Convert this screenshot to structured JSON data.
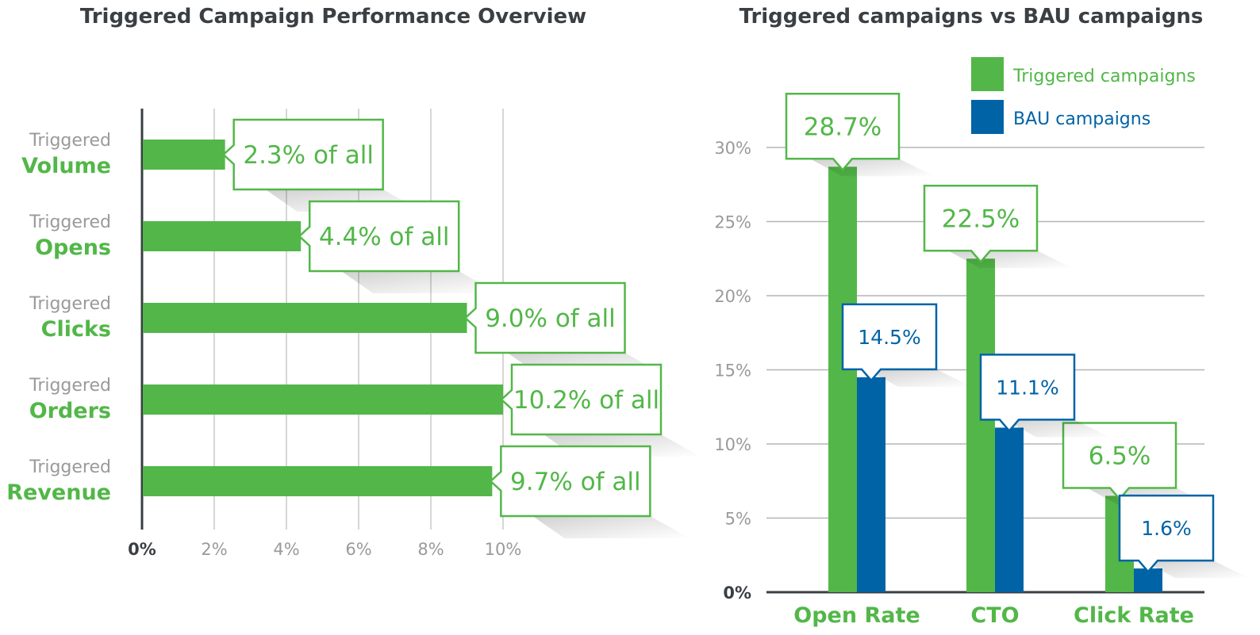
{
  "chart_data": [
    {
      "type": "bar",
      "orientation": "horizontal",
      "title": "Triggered Campaign Performance Overview",
      "categories": [
        {
          "prefix": "Triggered",
          "name": "Volume"
        },
        {
          "prefix": "Triggered",
          "name": "Opens"
        },
        {
          "prefix": "Triggered",
          "name": "Clicks"
        },
        {
          "prefix": "Triggered",
          "name": "Orders"
        },
        {
          "prefix": "Triggered",
          "name": "Revenue"
        }
      ],
      "values": [
        2.3,
        4.4,
        9.0,
        10.2,
        9.7
      ],
      "value_labels": [
        "2.3% of all",
        "4.4% of all",
        "9.0% of all",
        "10.2% of all",
        "9.7% of all"
      ],
      "xticks": [
        "0%",
        "2%",
        "4%",
        "6%",
        "8%",
        "10%"
      ],
      "xlim": [
        0,
        10
      ],
      "grid": true,
      "color": "#52b748"
    },
    {
      "type": "bar",
      "title": "Triggered campaigns vs BAU campaigns",
      "categories": [
        "Open Rate",
        "CTO",
        "Click Rate"
      ],
      "series": [
        {
          "name": "Triggered campaigns",
          "values": [
            28.7,
            22.5,
            6.5
          ],
          "labels": [
            "28.7%",
            "22.5%",
            "6.5%"
          ],
          "color": "#52b748"
        },
        {
          "name": "BAU campaigns",
          "values": [
            14.5,
            11.1,
            1.6
          ],
          "labels": [
            "14.5%",
            "11.1%",
            "1.6%"
          ],
          "color": "#0063a6"
        }
      ],
      "yticks": [
        "0%",
        "5%",
        "10%",
        "15%",
        "20%",
        "25%",
        "30%"
      ],
      "ylim": [
        0,
        30
      ],
      "grid": true,
      "legend": "top-right"
    }
  ]
}
